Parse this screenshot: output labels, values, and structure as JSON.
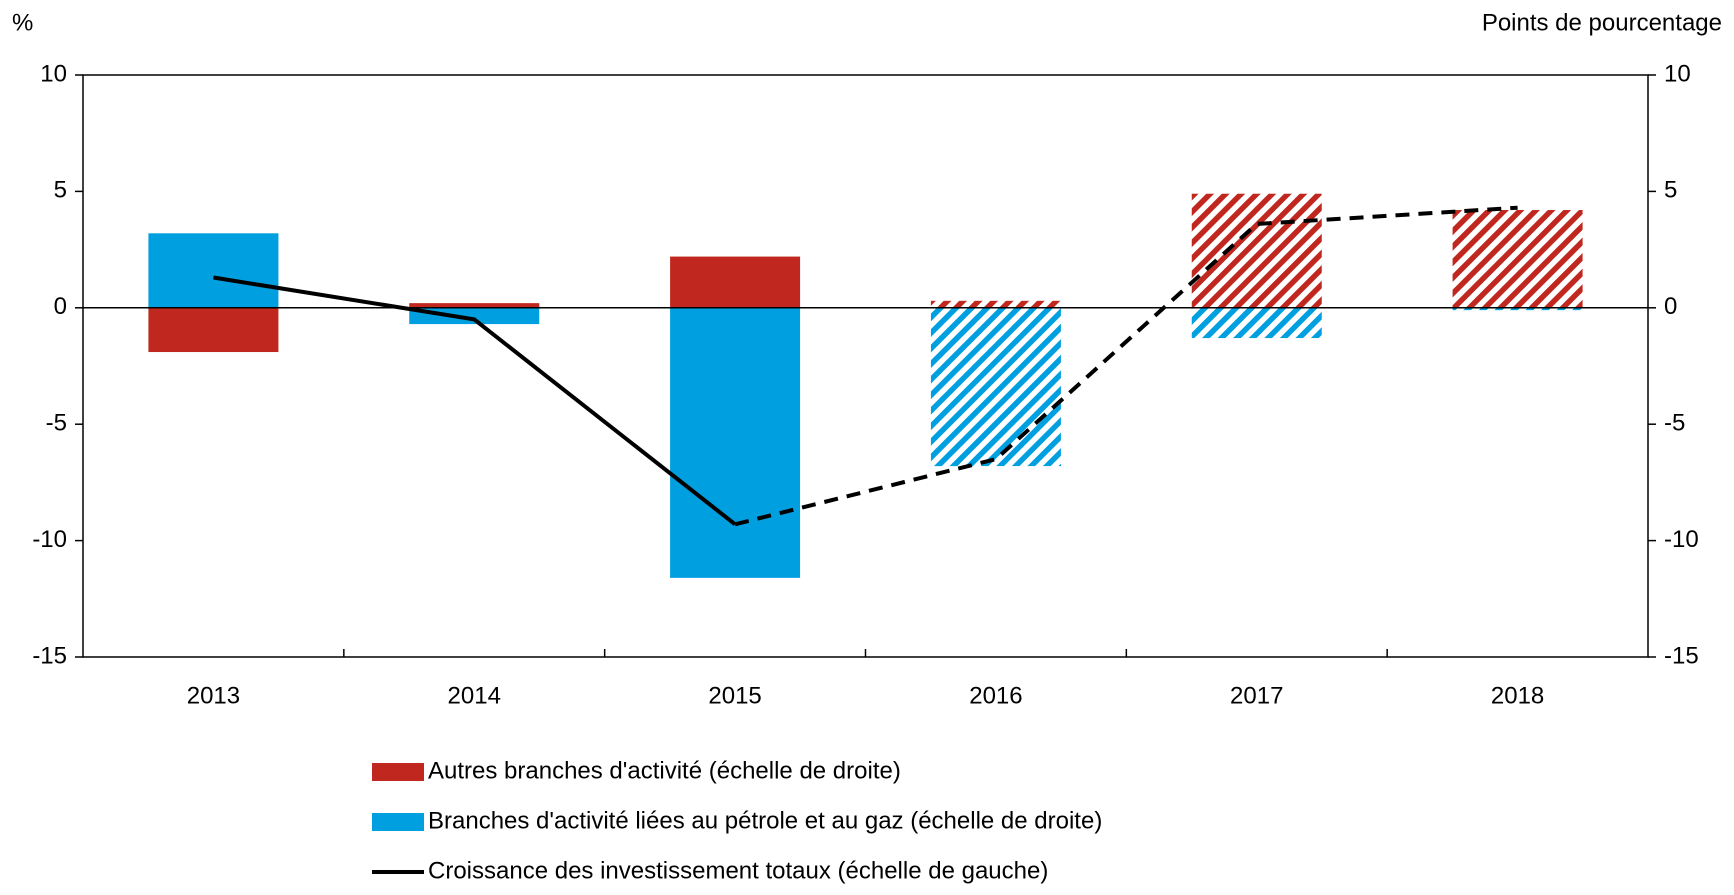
{
  "chart_data": {
    "type": "bar",
    "y_unit_label": "%",
    "y2_unit_label": "Points de pourcentage",
    "categories": [
      "2013",
      "2014",
      "2015",
      "2016",
      "2017",
      "2018"
    ],
    "estimate_from": "2016",
    "series": [
      {
        "name": "Autres branches d'activité (échelle de droite)",
        "color": "#c0281f",
        "type": "bar",
        "axis": "y2",
        "values": [
          -1.9,
          0.2,
          2.2,
          0.3,
          4.9,
          4.2
        ]
      },
      {
        "name": "Branches d'activité liées au pétrole et au gaz (échelle de droite)",
        "color": "#009fdf",
        "type": "bar",
        "axis": "y2",
        "values": [
          3.2,
          -0.7,
          -11.6,
          -6.8,
          -1.3,
          -0.1
        ]
      },
      {
        "name": "Croissance des investissement totaux (échelle de gauche)",
        "color": "#000000",
        "type": "line",
        "values": [
          1.3,
          -0.5,
          -9.3,
          -6.5,
          3.6,
          4.3
        ]
      }
    ],
    "ylim": [
      -15,
      10
    ],
    "yticks": [
      -15,
      -10,
      -5,
      0,
      5,
      10
    ],
    "y2lim": [
      -15,
      10
    ],
    "y2ticks": [
      -15,
      -10,
      -5,
      0,
      5,
      10
    ]
  }
}
